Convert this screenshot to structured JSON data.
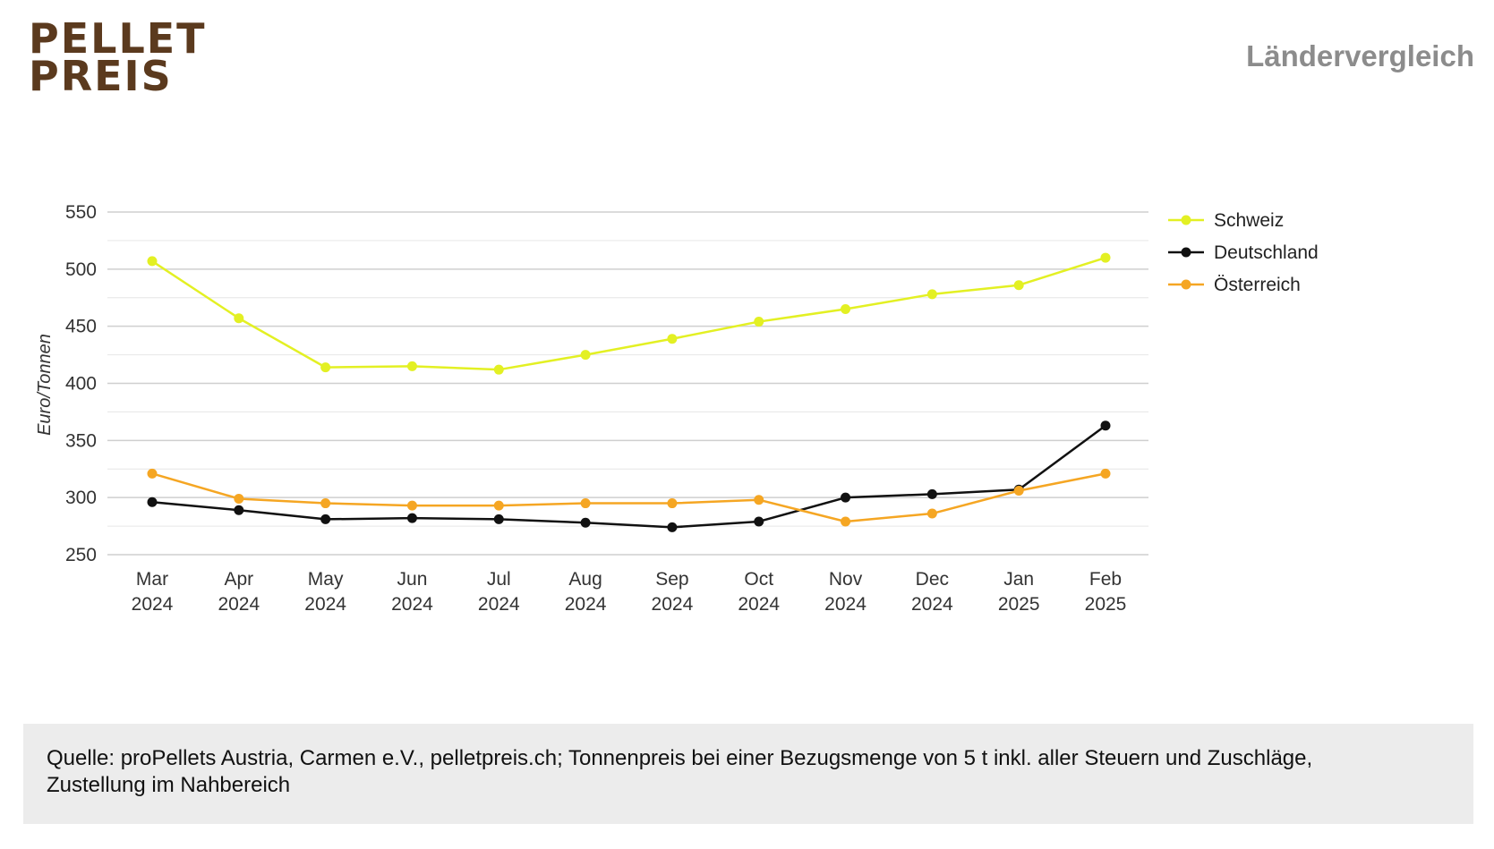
{
  "logo": {
    "line1": "PELLET",
    "line2": "PREIS"
  },
  "header": {
    "title": "Ländervergleich"
  },
  "colors": {
    "schweiz": "#e3f023",
    "deutschland": "#111111",
    "oesterreich": "#f5a623",
    "grid": "#cfcfcf",
    "grid_minor": "#e6e6e6",
    "axis_text": "#333333",
    "brand": "#5b3a1e"
  },
  "chart_data": {
    "type": "line",
    "title": "",
    "xlabel": "",
    "ylabel": "Euro/Tonnen",
    "ylim": [
      250,
      550
    ],
    "yticks": [
      250,
      300,
      350,
      400,
      450,
      500,
      550
    ],
    "grid": true,
    "legend_position": "right",
    "categories": [
      [
        "Mar",
        "2024"
      ],
      [
        "Apr",
        "2024"
      ],
      [
        "May",
        "2024"
      ],
      [
        "Jun",
        "2024"
      ],
      [
        "Jul",
        "2024"
      ],
      [
        "Aug",
        "2024"
      ],
      [
        "Sep",
        "2024"
      ],
      [
        "Oct",
        "2024"
      ],
      [
        "Nov",
        "2024"
      ],
      [
        "Dec",
        "2024"
      ],
      [
        "Jan",
        "2025"
      ],
      [
        "Feb",
        "2025"
      ]
    ],
    "series": [
      {
        "name": "Schweiz",
        "key": "schweiz",
        "values": [
          507,
          457,
          414,
          415,
          412,
          425,
          439,
          454,
          465,
          478,
          486,
          510
        ]
      },
      {
        "name": "Deutschland",
        "key": "deutschland",
        "values": [
          296,
          289,
          281,
          282,
          281,
          278,
          274,
          279,
          300,
          303,
          307,
          363
        ]
      },
      {
        "name": "Österreich",
        "key": "oesterreich",
        "values": [
          321,
          299,
          295,
          293,
          293,
          295,
          295,
          298,
          279,
          286,
          306,
          321
        ]
      }
    ]
  },
  "footer": {
    "line1": "Quelle: proPellets Austria, Carmen e.V., pelletpreis.ch; Tonnenpreis bei einer Bezugsmenge von 5 t inkl. aller Steuern und Zuschläge,",
    "line2": "Zustellung im Nahbereich"
  }
}
